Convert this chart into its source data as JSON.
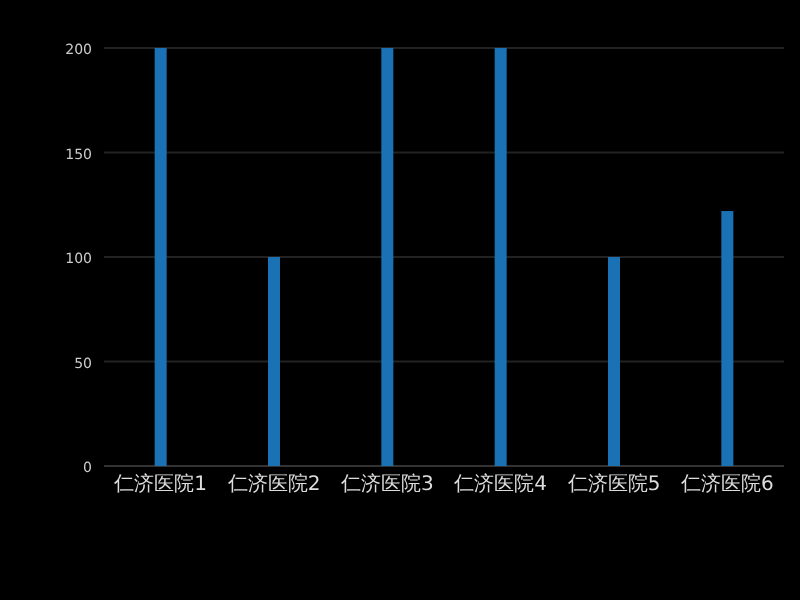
{
  "chart_data": {
    "type": "bar",
    "categories": [
      "仁济医院1",
      "仁济医院2",
      "仁济医院3",
      "仁济医院4",
      "仁济医院5",
      "仁济医院6"
    ],
    "values": [
      200,
      100,
      200,
      200,
      100,
      122
    ],
    "color": "#1a72b4",
    "ylim": [
      0,
      200
    ],
    "yticks": [
      0,
      50,
      100,
      150,
      200
    ],
    "grid": "y"
  }
}
